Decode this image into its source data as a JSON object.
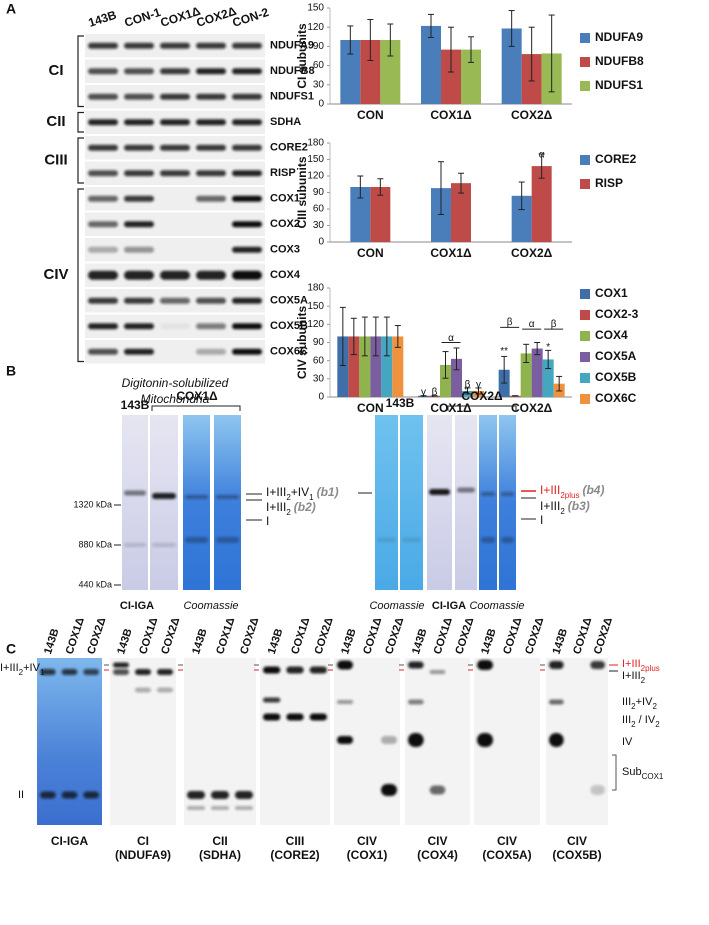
{
  "panel_labels": [
    "A",
    "B",
    "C"
  ],
  "panel_a": {
    "lanes": [
      "143B",
      "CON-1",
      "COX1Δ",
      "COX2Δ",
      "CON-2"
    ],
    "proteins": [
      "NDUFA9",
      "NDUFB8",
      "NDUFS1",
      "SDHA",
      "CORE2",
      "RISP",
      "COX1",
      "COX2",
      "COX3",
      "COX4",
      "COX5A",
      "COX5B",
      "COX6C"
    ],
    "complexes": [
      "CI",
      "CII",
      "CIII",
      "CIV"
    ],
    "caption": [
      "Digitonin-solubilized",
      "Mitochondria"
    ]
  },
  "chart_data": [
    {
      "type": "bar",
      "ylabel": "CI subunits",
      "categories": [
        "CON",
        "COX1Δ",
        "COX2Δ"
      ],
      "ylim": [
        0,
        150
      ],
      "yticks": [
        0,
        30,
        60,
        90,
        120,
        150
      ],
      "series": [
        {
          "name": "NDUFA9",
          "color": "#4a7ebb",
          "values": [
            100,
            122,
            118
          ],
          "errors": [
            22,
            18,
            28
          ]
        },
        {
          "name": "NDUFB8",
          "color": "#be4b48",
          "values": [
            100,
            85,
            78
          ],
          "errors": [
            32,
            35,
            42
          ]
        },
        {
          "name": "NDUFS1",
          "color": "#98b954",
          "values": [
            100,
            85,
            79
          ],
          "errors": [
            25,
            20,
            60
          ]
        }
      ],
      "annotations": []
    },
    {
      "type": "bar",
      "ylabel": "CIII subunits",
      "categories": [
        "CON",
        "COX1Δ",
        "COX2Δ"
      ],
      "ylim": [
        0,
        180
      ],
      "yticks": [
        0,
        30,
        60,
        90,
        120,
        150,
        180
      ],
      "series": [
        {
          "name": "CORE2",
          "color": "#4a7ebb",
          "values": [
            100,
            98,
            84
          ],
          "errors": [
            20,
            48,
            25
          ]
        },
        {
          "name": "RISP",
          "color": "#be4b48",
          "values": [
            100,
            107,
            138
          ],
          "errors": [
            15,
            18,
            22
          ]
        }
      ],
      "annotations": [
        "α"
      ]
    },
    {
      "type": "bar",
      "ylabel": "CIV subunits",
      "categories": [
        "CON",
        "COX1Δ",
        "COX2Δ"
      ],
      "ylim": [
        0,
        180
      ],
      "yticks": [
        0,
        30,
        60,
        90,
        120,
        150,
        180
      ],
      "series": [
        {
          "name": "COX1",
          "color": "#3f6fa8",
          "values": [
            100,
            2,
            45
          ],
          "errors": [
            48,
            0,
            22
          ]
        },
        {
          "name": "COX2-3",
          "color": "#be4b48",
          "values": [
            100,
            2,
            2
          ],
          "errors": [
            30,
            0,
            0
          ]
        },
        {
          "name": "COX4",
          "color": "#8fb44e",
          "values": [
            100,
            53,
            72
          ],
          "errors": [
            32,
            22,
            15
          ]
        },
        {
          "name": "COX5A",
          "color": "#7a5ea0",
          "values": [
            100,
            63,
            80
          ],
          "errors": [
            32,
            18,
            10
          ]
        },
        {
          "name": "COX5B",
          "color": "#45a6c0",
          "values": [
            100,
            10,
            62
          ],
          "errors": [
            32,
            5,
            15
          ]
        },
        {
          "name": "COX6C",
          "color": "#f0913e",
          "values": [
            100,
            10,
            22
          ],
          "errors": [
            18,
            5,
            12
          ]
        }
      ],
      "annotations": [
        "γ",
        "β",
        "α",
        "β",
        "γ",
        "**",
        "β",
        "α",
        "β",
        "*"
      ]
    }
  ],
  "panel_b": {
    "left": {
      "lane_label": "143B",
      "group_label": "COX1Δ",
      "markers": [
        "1320 kDa",
        "880 kDa",
        "440 kDa"
      ],
      "bands": [
        [
          "I+III",
          "2",
          "+IV",
          "1"
        ],
        [
          "I+III",
          "2"
        ],
        [
          "I"
        ]
      ],
      "band_ids": [
        "(b1)",
        "(b2)"
      ],
      "stains": [
        "CI-IGA",
        "Coomassie"
      ]
    },
    "right": {
      "group_labels": [
        "143B",
        "COX2Δ"
      ],
      "bands": [
        [
          "I+III",
          "2plus"
        ],
        [
          "I+III",
          "2"
        ],
        [
          "I"
        ]
      ],
      "band_ids": [
        "(b4)",
        "(b3)"
      ],
      "stains": [
        "Coomassie",
        "CI-IGA",
        "Coomassie"
      ]
    }
  },
  "panel_c": {
    "lanes": [
      "143B",
      "COX1Δ",
      "COX2Δ"
    ],
    "blots": [
      [
        "CI-IGA"
      ],
      [
        "CI",
        "(NDUFA9)"
      ],
      [
        "CII",
        "(SDHA)"
      ],
      [
        "CIII",
        "(CORE2)"
      ],
      [
        "CIV",
        "(COX1)"
      ],
      [
        "CIV",
        "(COX4)"
      ],
      [
        "CIV",
        "(COX5A)"
      ],
      [
        "CIV",
        "(COX5B)"
      ]
    ],
    "left_labels": [
      [
        "I+III",
        "2",
        "+IV",
        "1"
      ],
      [
        "II"
      ]
    ],
    "right_labels": [
      [
        "I+III",
        "2plus"
      ],
      [
        "I+III",
        "2"
      ],
      [
        "III",
        "2",
        "+IV",
        "2"
      ],
      [
        "III",
        "2",
        " / IV",
        "2"
      ],
      [
        "IV"
      ],
      [
        "Sub",
        "COX1"
      ]
    ]
  }
}
